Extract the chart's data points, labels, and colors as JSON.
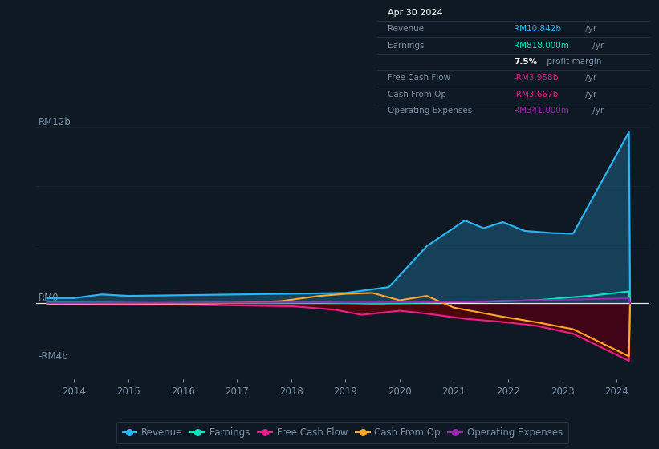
{
  "background_color": "#0f1923",
  "plot_bg_color": "#0f1923",
  "grid_color": "#1a2535",
  "text_color": "#7a8fa8",
  "title_color": "#ffffff",
  "legend_items": [
    {
      "label": "Revenue",
      "color": "#29b6f6"
    },
    {
      "label": "Earnings",
      "color": "#00e5c0"
    },
    {
      "label": "Free Cash Flow",
      "color": "#e91e8c"
    },
    {
      "label": "Cash From Op",
      "color": "#ffa726"
    },
    {
      "label": "Operating Expenses",
      "color": "#9c27b0"
    }
  ],
  "tooltip_bg": "#0a0f18",
  "tooltip_border": "#2a3a4a",
  "rev_color": "#29b6f6",
  "earn_color": "#00e5c0",
  "fcf_color": "#e91e8c",
  "cfo_color": "#ffa726",
  "opex_color": "#9c27b0"
}
